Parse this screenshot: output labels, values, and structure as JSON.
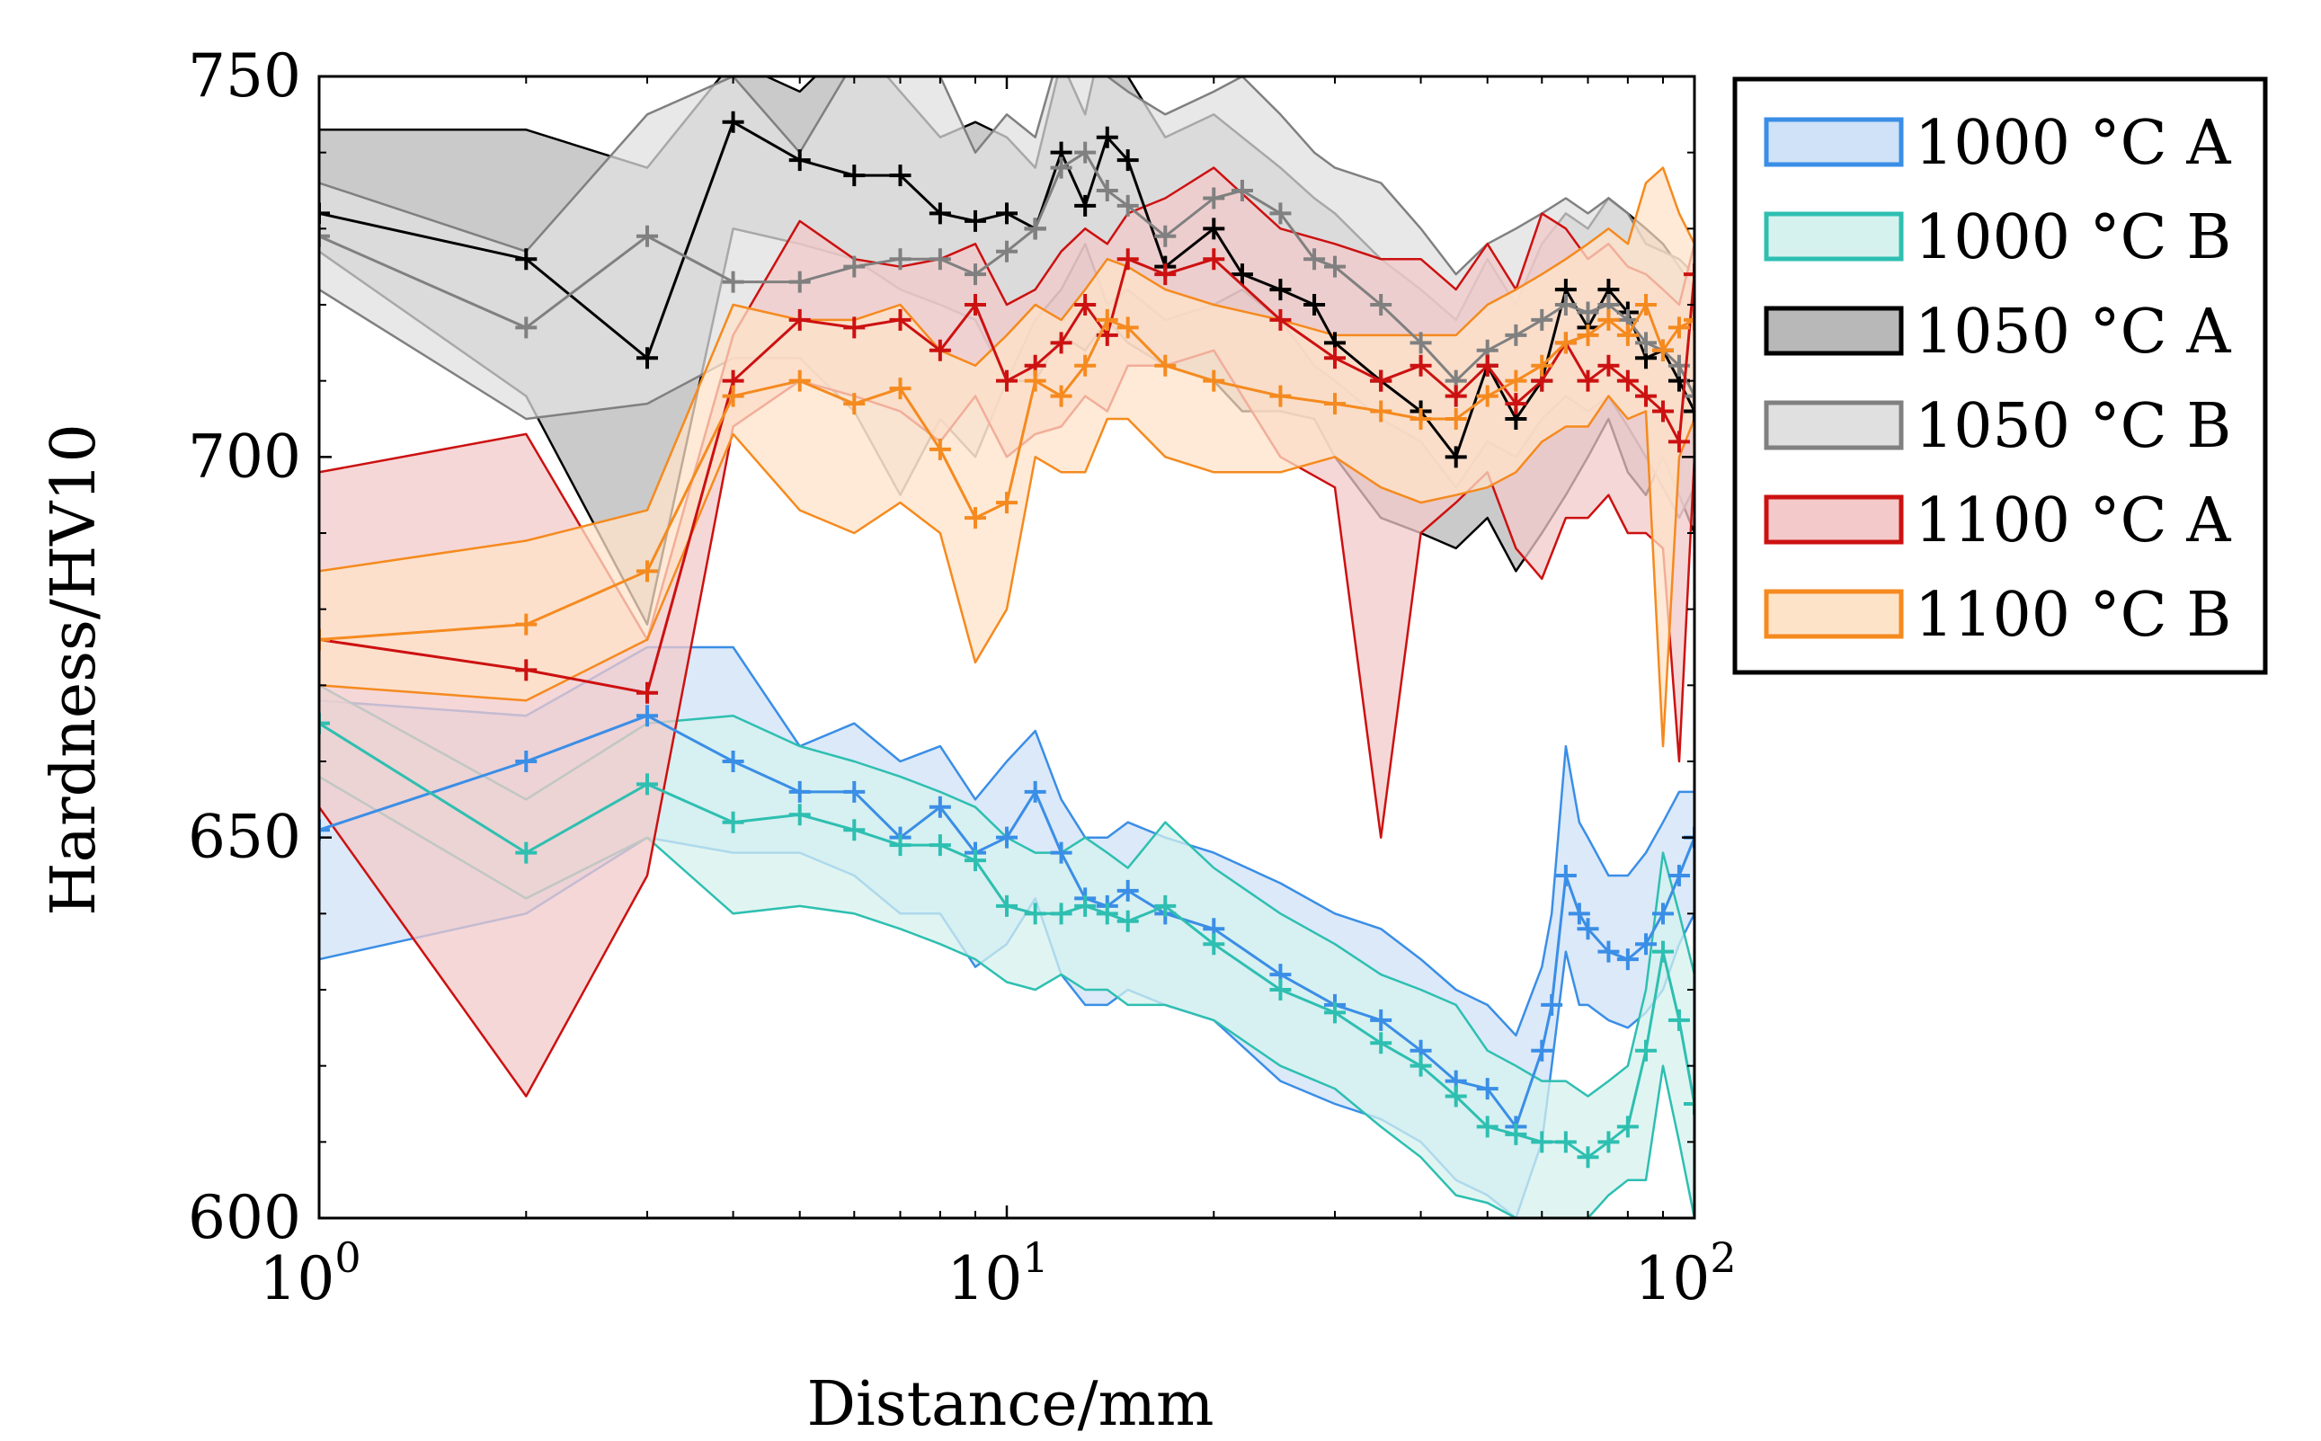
{
  "chart_data": {
    "type": "line",
    "xscale": "log",
    "xlabel": "Distance/mm",
    "ylabel": "Hardness/HV10",
    "xlim": [
      1,
      100
    ],
    "ylim": [
      600,
      750
    ],
    "yticks": [
      600,
      650,
      700,
      750
    ],
    "ytick_labels": [
      "600",
      "650",
      "700",
      "750"
    ],
    "xticks": [
      1,
      10,
      100
    ],
    "xtick_labels": [
      {
        "base": "10",
        "exp": "0"
      },
      {
        "base": "10",
        "exp": "1"
      },
      {
        "base": "10",
        "exp": "2"
      }
    ],
    "legend_position": "outside-right-top",
    "series": [
      {
        "name": "1000 °C A",
        "color": "#3a8ee6",
        "fill": "#cfe2f7",
        "x": [
          1,
          2,
          3,
          4,
          5,
          6,
          7,
          8,
          9,
          10,
          11,
          12,
          13,
          14,
          15,
          17,
          20,
          25,
          30,
          35,
          40,
          45,
          50,
          55,
          60,
          62,
          65,
          68,
          70,
          75,
          80,
          85,
          90,
          95,
          100
        ],
        "y": [
          651,
          660,
          666,
          660,
          656,
          656,
          650,
          654,
          648,
          650,
          656,
          648,
          642,
          641,
          643,
          640,
          638,
          632,
          628,
          626,
          622,
          618,
          617,
          612,
          622,
          628,
          645,
          640,
          638,
          635,
          634,
          636,
          640,
          645,
          650
        ],
        "lower": [
          634,
          640,
          650,
          648,
          648,
          645,
          640,
          640,
          633,
          636,
          642,
          632,
          628,
          628,
          630,
          628,
          626,
          618,
          615,
          613,
          610,
          605,
          603,
          600,
          610,
          620,
          635,
          628,
          628,
          626,
          625,
          627,
          630,
          636,
          640
        ],
        "upper": [
          668,
          666,
          675,
          675,
          662,
          665,
          660,
          662,
          655,
          660,
          664,
          655,
          650,
          650,
          652,
          650,
          648,
          644,
          640,
          638,
          634,
          630,
          628,
          624,
          633,
          640,
          662,
          652,
          650,
          645,
          645,
          648,
          652,
          656,
          656
        ]
      },
      {
        "name": "1000 °C B",
        "color": "#2ebfb1",
        "fill": "#d6f2ee",
        "x": [
          1,
          2,
          3,
          4,
          5,
          6,
          7,
          8,
          9,
          10,
          11,
          12,
          13,
          14,
          15,
          17,
          20,
          25,
          30,
          35,
          40,
          45,
          50,
          55,
          60,
          65,
          70,
          75,
          80,
          85,
          90,
          95,
          100
        ],
        "y": [
          665,
          648,
          657,
          652,
          653,
          651,
          649,
          649,
          647,
          641,
          640,
          640,
          641,
          640,
          639,
          641,
          636,
          630,
          627,
          623,
          620,
          616,
          612,
          611,
          610,
          610,
          608,
          610,
          612,
          622,
          635,
          626,
          615
        ],
        "lower": [
          658,
          642,
          650,
          640,
          641,
          640,
          638,
          636,
          634,
          631,
          630,
          632,
          630,
          630,
          628,
          628,
          626,
          620,
          617,
          612,
          608,
          603,
          602,
          600,
          600,
          600,
          600,
          603,
          605,
          605,
          620,
          610,
          600
        ],
        "upper": [
          670,
          655,
          665,
          666,
          662,
          660,
          658,
          656,
          654,
          650,
          648,
          648,
          650,
          648,
          646,
          652,
          646,
          640,
          636,
          632,
          630,
          628,
          622,
          620,
          618,
          618,
          616,
          618,
          620,
          630,
          648,
          640,
          632
        ]
      },
      {
        "name": "1050 °C A",
        "color": "#000000",
        "fill": "#b8b8b8",
        "x": [
          1,
          2,
          3,
          4,
          5,
          6,
          7,
          8,
          9,
          10,
          11,
          12,
          13,
          14,
          15,
          17,
          20,
          22,
          25,
          28,
          30,
          35,
          40,
          45,
          50,
          55,
          60,
          65,
          70,
          75,
          80,
          85,
          90,
          95,
          100
        ],
        "y": [
          732,
          726,
          713,
          744,
          739,
          737,
          737,
          732,
          731,
          732,
          730,
          740,
          733,
          742,
          739,
          725,
          730,
          724,
          722,
          720,
          715,
          710,
          706,
          700,
          712,
          705,
          710,
          722,
          717,
          722,
          719,
          713,
          714,
          710,
          706
        ],
        "lower": [
          727,
          708,
          678,
          730,
          728,
          726,
          722,
          720,
          718,
          710,
          710,
          716,
          714,
          718,
          715,
          712,
          710,
          706,
          706,
          705,
          700,
          692,
          690,
          688,
          692,
          685,
          690,
          695,
          700,
          705,
          698,
          695,
          700,
          695,
          690
        ],
        "upper": [
          743,
          743,
          738,
          752,
          748,
          755,
          748,
          742,
          744,
          742,
          738,
          752,
          745,
          758,
          750,
          742,
          745,
          742,
          738,
          734,
          732,
          726,
          722,
          718,
          726,
          720,
          728,
          732,
          730,
          734,
          732,
          730,
          728,
          725,
          722
        ]
      },
      {
        "name": "1050 °C B",
        "color": "#808080",
        "fill": "#e0e0e0",
        "x": [
          1,
          2,
          3,
          4,
          5,
          6,
          7,
          8,
          9,
          10,
          11,
          12,
          13,
          14,
          15,
          17,
          20,
          22,
          25,
          28,
          30,
          35,
          40,
          45,
          50,
          55,
          60,
          65,
          70,
          75,
          80,
          85,
          90,
          95,
          100
        ],
        "y": [
          729,
          717,
          729,
          723,
          723,
          725,
          726,
          726,
          724,
          727,
          730,
          738,
          740,
          735,
          733,
          729,
          734,
          735,
          732,
          726,
          725,
          720,
          715,
          710,
          714,
          716,
          718,
          720,
          719,
          720,
          718,
          715,
          714,
          712,
          708
        ],
        "lower": [
          722,
          705,
          707,
          713,
          713,
          706,
          695,
          705,
          700,
          710,
          718,
          722,
          728,
          720,
          722,
          718,
          720,
          722,
          718,
          712,
          710,
          705,
          702,
          696,
          702,
          700,
          705,
          708,
          706,
          708,
          704,
          700,
          696,
          692,
          696
        ],
        "upper": [
          736,
          727,
          745,
          750,
          740,
          752,
          755,
          750,
          740,
          745,
          742,
          754,
          752,
          750,
          748,
          745,
          748,
          750,
          745,
          740,
          738,
          736,
          730,
          724,
          728,
          730,
          732,
          734,
          732,
          734,
          732,
          728,
          727,
          726,
          724
        ]
      },
      {
        "name": "1100 °C A",
        "color": "#cc1111",
        "fill": "#f3c9c9",
        "x": [
          1,
          2,
          3,
          4,
          5,
          6,
          7,
          8,
          9,
          10,
          11,
          12,
          13,
          14,
          15,
          17,
          20,
          25,
          30,
          35,
          40,
          45,
          50,
          55,
          60,
          65,
          70,
          75,
          80,
          85,
          90,
          95,
          100
        ],
        "y": [
          676,
          672,
          669,
          710,
          718,
          717,
          718,
          714,
          720,
          710,
          712,
          715,
          720,
          716,
          726,
          724,
          726,
          718,
          713,
          710,
          712,
          708,
          712,
          707,
          710,
          715,
          710,
          712,
          710,
          708,
          706,
          702,
          724
        ],
        "lower": [
          654,
          616,
          645,
          704,
          710,
          708,
          706,
          702,
          708,
          700,
          703,
          704,
          708,
          706,
          712,
          712,
          714,
          700,
          696,
          650,
          690,
          694,
          698,
          688,
          684,
          692,
          692,
          695,
          690,
          690,
          688,
          660,
          700
        ],
        "upper": [
          698,
          703,
          676,
          716,
          731,
          726,
          725,
          726,
          728,
          720,
          722,
          727,
          730,
          728,
          732,
          734,
          738,
          730,
          728,
          726,
          726,
          722,
          728,
          722,
          732,
          730,
          726,
          728,
          725,
          724,
          722,
          720,
          728
        ]
      },
      {
        "name": "1100 °C B",
        "color": "#f58a1f",
        "fill": "#fde3c8",
        "x": [
          1,
          2,
          3,
          4,
          5,
          6,
          7,
          8,
          9,
          10,
          11,
          12,
          13,
          14,
          15,
          17,
          20,
          25,
          30,
          35,
          40,
          45,
          50,
          55,
          60,
          65,
          70,
          75,
          80,
          85,
          90,
          95,
          100
        ],
        "y": [
          676,
          678,
          685,
          708,
          710,
          707,
          709,
          701,
          692,
          694,
          710,
          708,
          712,
          718,
          717,
          712,
          710,
          708,
          707,
          706,
          705,
          705,
          708,
          710,
          712,
          715,
          716,
          718,
          716,
          720,
          714,
          717,
          718
        ],
        "lower": [
          670,
          668,
          676,
          703,
          693,
          690,
          694,
          690,
          673,
          680,
          700,
          698,
          698,
          705,
          705,
          700,
          698,
          698,
          700,
          696,
          694,
          695,
          696,
          698,
          702,
          704,
          704,
          708,
          705,
          706,
          662,
          700,
          705
        ],
        "upper": [
          685,
          689,
          693,
          720,
          718,
          718,
          720,
          714,
          712,
          716,
          720,
          718,
          722,
          726,
          725,
          722,
          720,
          718,
          716,
          716,
          716,
          716,
          720,
          722,
          724,
          726,
          728,
          730,
          728,
          736,
          738,
          732,
          728
        ]
      }
    ]
  }
}
